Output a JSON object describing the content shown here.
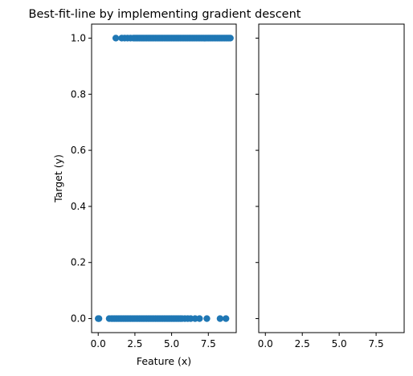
{
  "chart_data": [
    {
      "type": "scatter",
      "title": "Best-fit-line by implementing gradient descent",
      "xlabel": "Feature (x)",
      "ylabel": "Target (y)",
      "xlim": [
        -0.45,
        9.4
      ],
      "ylim": [
        -0.05,
        1.05
      ],
      "xticks": [
        0.0,
        2.5,
        5.0,
        7.5
      ],
      "xtick_labels": [
        "0.0",
        "2.5",
        "5.0",
        "7.5"
      ],
      "yticks": [
        0.0,
        0.2,
        0.4,
        0.6,
        0.8,
        1.0
      ],
      "ytick_labels": [
        "0.0",
        "0.2",
        "0.4",
        "0.6",
        "0.8",
        "1.0"
      ],
      "grid": false,
      "marker_color": "#1f77b4",
      "series": [
        {
          "x": [
            0.0,
            0.05,
            0.75,
            0.9,
            1.0,
            1.1,
            1.2,
            1.3,
            1.4,
            1.5,
            1.6,
            1.7,
            1.8,
            1.9,
            2.0,
            2.1,
            2.2,
            2.3,
            2.4,
            2.5,
            2.6,
            2.7,
            2.8,
            2.9,
            3.0,
            3.1,
            3.2,
            3.3,
            3.4,
            3.5,
            3.6,
            3.7,
            3.8,
            3.9,
            4.0,
            4.1,
            4.2,
            4.3,
            4.4,
            4.5,
            4.6,
            4.7,
            4.8,
            4.9,
            5.0,
            5.1,
            5.2,
            5.3,
            5.4,
            5.5,
            5.6,
            5.7,
            5.9,
            6.1,
            6.3,
            6.6,
            6.9,
            7.4,
            8.3,
            8.7
          ],
          "y": [
            0,
            0,
            0,
            0,
            0,
            0,
            0,
            0,
            0,
            0,
            0,
            0,
            0,
            0,
            0,
            0,
            0,
            0,
            0,
            0,
            0,
            0,
            0,
            0,
            0,
            0,
            0,
            0,
            0,
            0,
            0,
            0,
            0,
            0,
            0,
            0,
            0,
            0,
            0,
            0,
            0,
            0,
            0,
            0,
            0,
            0,
            0,
            0,
            0,
            0,
            0,
            0,
            0,
            0,
            0,
            0,
            0,
            0,
            0,
            0
          ]
        },
        {
          "x": [
            1.2,
            1.6,
            1.8,
            2.0,
            2.2,
            2.4,
            2.5,
            2.6,
            2.7,
            2.8,
            2.9,
            3.0,
            3.1,
            3.2,
            3.3,
            3.4,
            3.5,
            3.6,
            3.7,
            3.8,
            3.9,
            4.0,
            4.1,
            4.2,
            4.3,
            4.4,
            4.5,
            4.6,
            4.7,
            4.8,
            4.9,
            5.0,
            5.1,
            5.2,
            5.3,
            5.4,
            5.5,
            5.6,
            5.7,
            5.8,
            5.9,
            6.0,
            6.1,
            6.2,
            6.3,
            6.4,
            6.5,
            6.6,
            6.7,
            6.8,
            6.9,
            7.0,
            7.1,
            7.2,
            7.3,
            7.4,
            7.5,
            7.6,
            7.7,
            7.8,
            7.9,
            8.0,
            8.1,
            8.2,
            8.3,
            8.4,
            8.5,
            8.6,
            8.7,
            8.8,
            8.9,
            9.0
          ],
          "y": [
            1,
            1,
            1,
            1,
            1,
            1,
            1,
            1,
            1,
            1,
            1,
            1,
            1,
            1,
            1,
            1,
            1,
            1,
            1,
            1,
            1,
            1,
            1,
            1,
            1,
            1,
            1,
            1,
            1,
            1,
            1,
            1,
            1,
            1,
            1,
            1,
            1,
            1,
            1,
            1,
            1,
            1,
            1,
            1,
            1,
            1,
            1,
            1,
            1,
            1,
            1,
            1,
            1,
            1,
            1,
            1,
            1,
            1,
            1,
            1,
            1,
            1,
            1,
            1,
            1,
            1,
            1,
            1,
            1,
            1,
            1,
            1
          ]
        }
      ]
    },
    {
      "type": "scatter",
      "title": "",
      "xlabel": "",
      "ylabel": "",
      "xlim": [
        -0.45,
        9.4
      ],
      "ylim": [
        -0.05,
        1.05
      ],
      "xticks": [
        0.0,
        2.5,
        5.0,
        7.5
      ],
      "xtick_labels": [
        "0.0",
        "2.5",
        "5.0",
        "7.5"
      ],
      "yticks": [
        0.0,
        0.2,
        0.4,
        0.6,
        0.8,
        1.0
      ],
      "ytick_labels": [],
      "grid": false,
      "series": []
    }
  ]
}
